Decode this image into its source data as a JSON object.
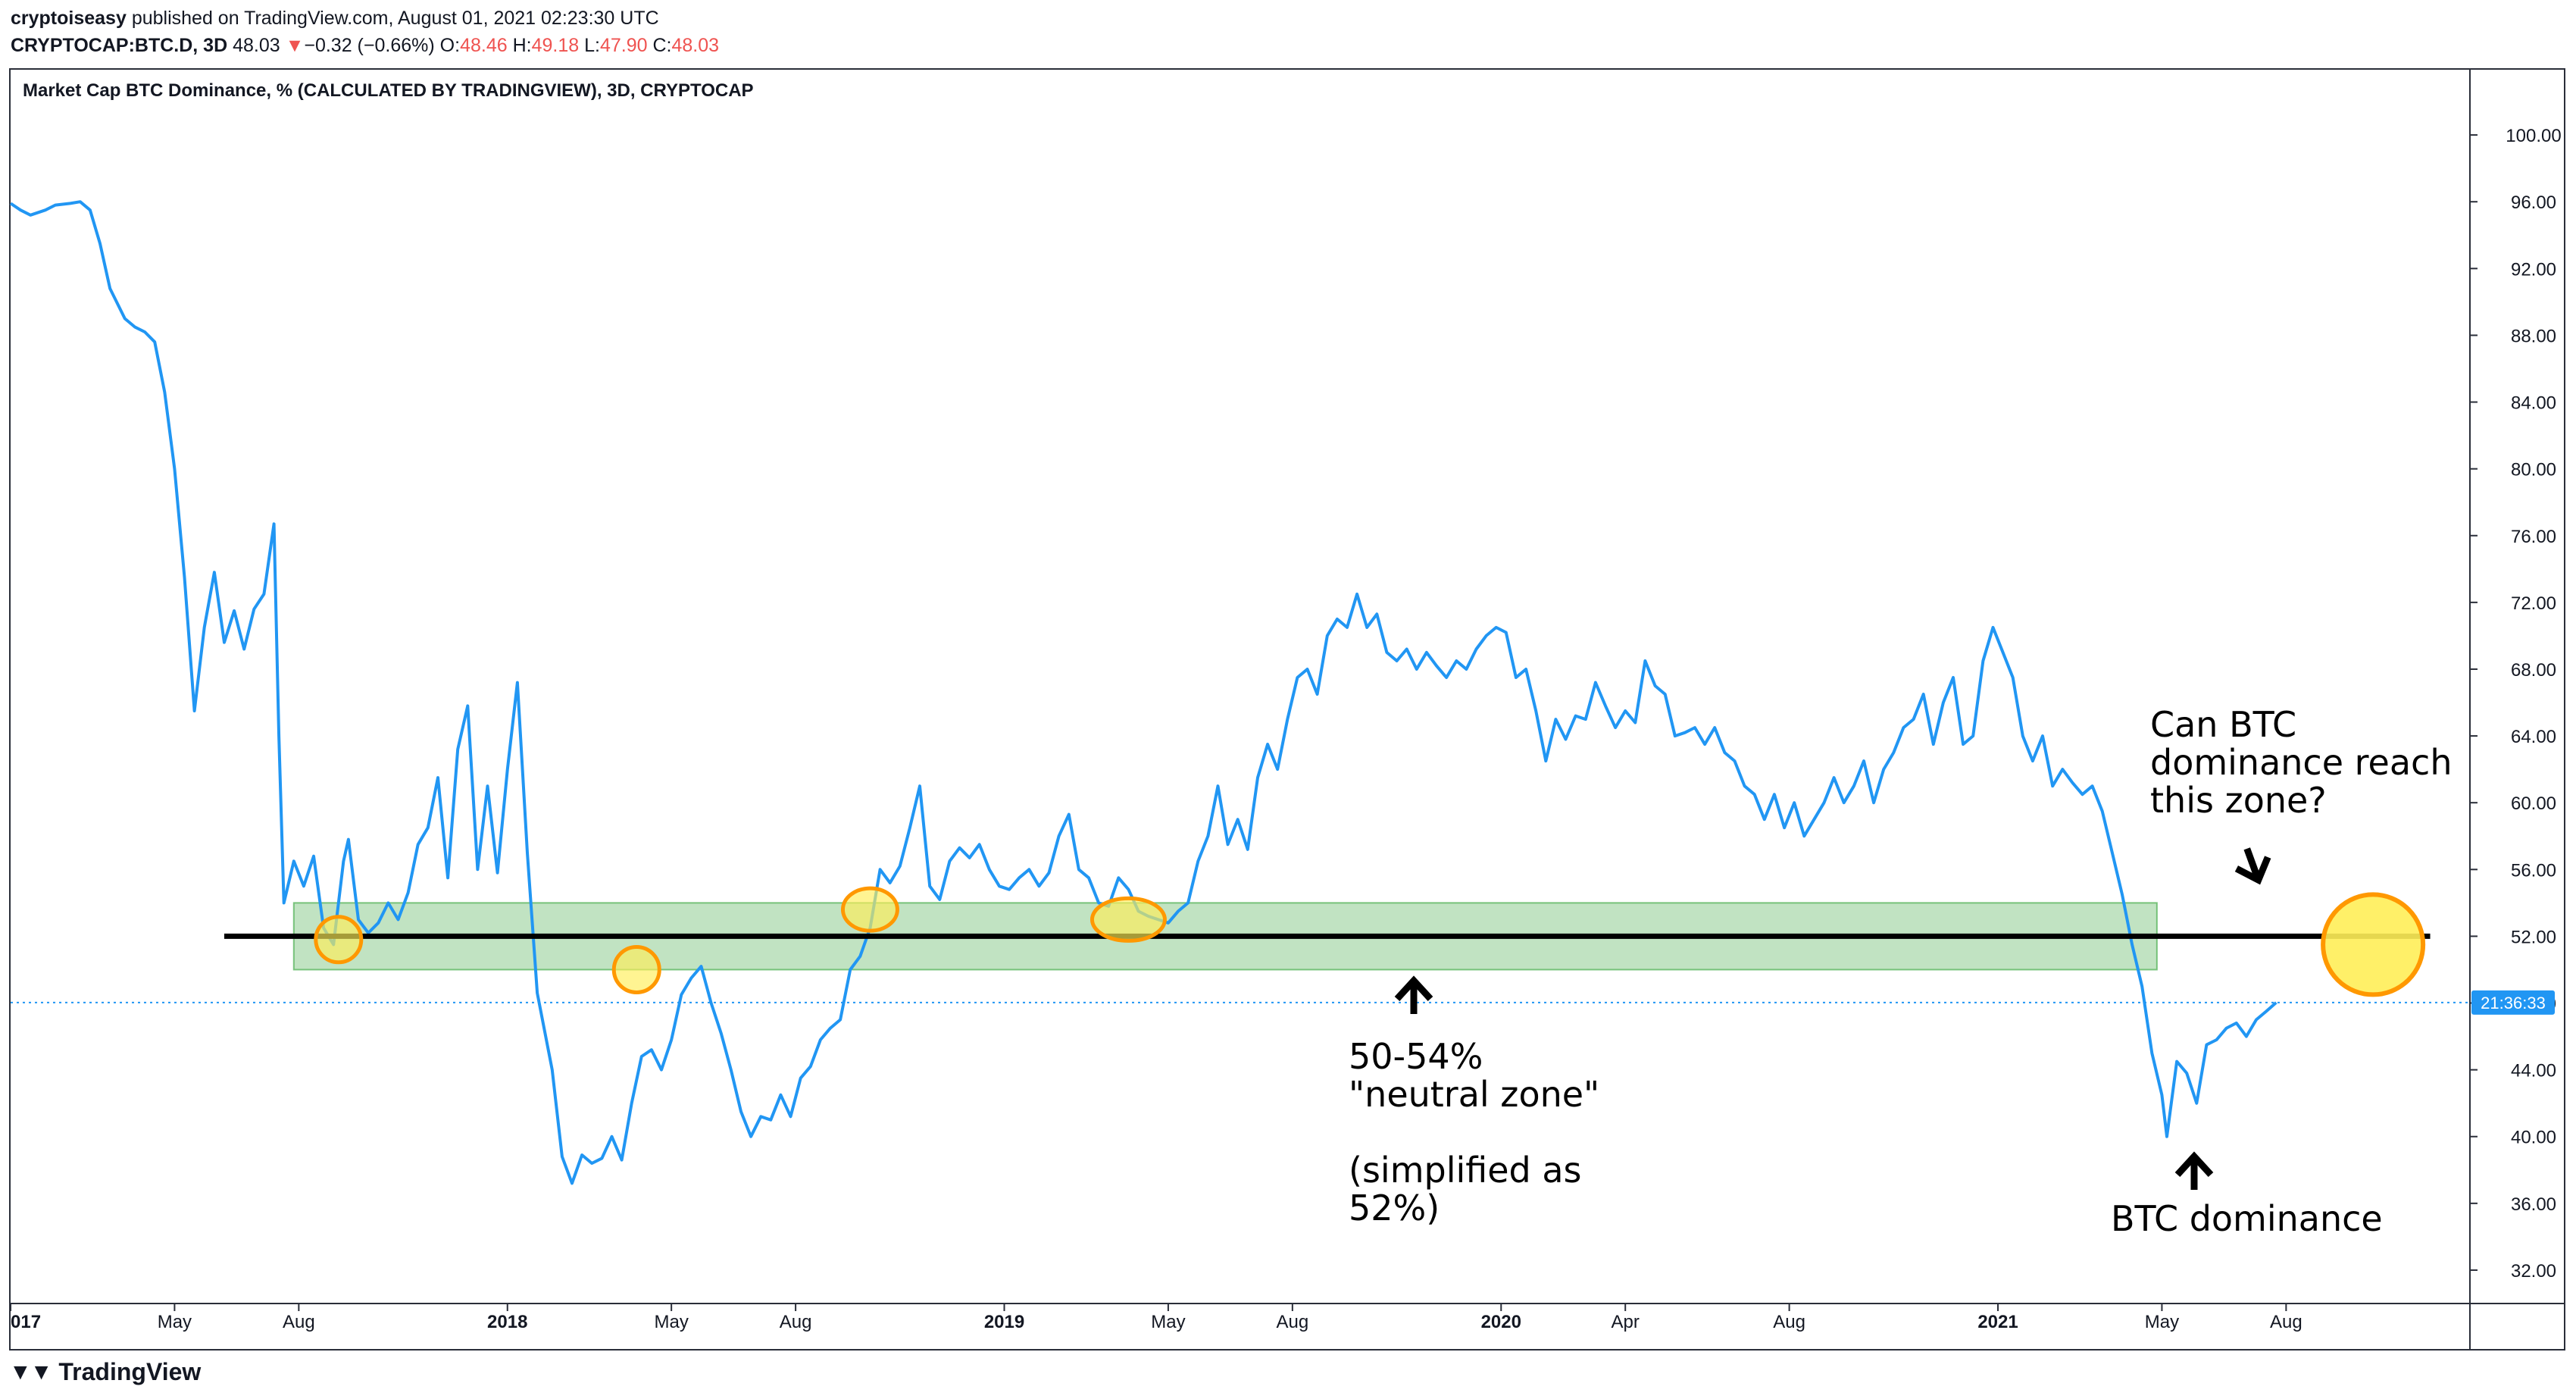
{
  "header": {
    "publisher": "cryptoiseasy",
    "published_text": "published on TradingView.com, August 01, 2021 02:23:30 UTC",
    "symbol": "CRYPTOCAP:BTC.D, 3D",
    "last": "48.03",
    "change": "−0.32 (−0.66%)",
    "open_label": "O:",
    "open": "48.46",
    "high_label": "H:",
    "high": "49.18",
    "low_label": "L:",
    "low": "47.90",
    "close_label": "C:",
    "close": "48.03"
  },
  "chart_title": "Market Cap BTC Dominance, % (CALCULATED BY TRADINGVIEW), 3D, CRYPTOCAP",
  "price_tag": "21:36:33",
  "brand": "TradingView",
  "annotations": {
    "question_lines": [
      "Can BTC",
      "dominance reach",
      "this zone?"
    ],
    "zone_lines": [
      "50-54%",
      "\"neutral zone\"",
      "",
      "(simplified as",
      "52%)"
    ],
    "btc_label": "BTC dominance"
  },
  "colors": {
    "line": "#2196f3",
    "zone": "#4caf50",
    "circle_fill": "#ffee58",
    "circle_stroke": "#ff9800",
    "axis": "#2a2e39"
  },
  "chart_data": {
    "type": "line",
    "title": "Market Cap BTC Dominance, % (CALCULATED BY TRADINGVIEW), 3D, CRYPTOCAP",
    "ylim": [
      30,
      104
    ],
    "y_ticks": [
      "100.00",
      "96.00",
      "92.00",
      "88.00",
      "84.00",
      "80.00",
      "76.00",
      "72.00",
      "68.00",
      "64.00",
      "60.00",
      "56.00",
      "52.00",
      "48.00",
      "44.00",
      "40.00",
      "36.00",
      "32.00"
    ],
    "x_ticks": [
      {
        "label": "017",
        "t": 2017.0
      },
      {
        "label": "May",
        "t": 2017.33
      },
      {
        "label": "Aug",
        "t": 2017.58
      },
      {
        "label": "2018",
        "t": 2018.0
      },
      {
        "label": "May",
        "t": 2018.33
      },
      {
        "label": "Aug",
        "t": 2018.58
      },
      {
        "label": "2019",
        "t": 2019.0
      },
      {
        "label": "May",
        "t": 2019.33
      },
      {
        "label": "Aug",
        "t": 2019.58
      },
      {
        "label": "2020",
        "t": 2020.0
      },
      {
        "label": "Apr",
        "t": 2020.25
      },
      {
        "label": "Aug",
        "t": 2020.58
      },
      {
        "label": "2021",
        "t": 2021.0
      },
      {
        "label": "May",
        "t": 2021.33
      },
      {
        "label": "Aug",
        "t": 2021.58
      }
    ],
    "neutral_zone": [
      50,
      54
    ],
    "level": 52,
    "last_value": 48.03,
    "series": [
      {
        "points": [
          [
            2017.0,
            95.9
          ],
          [
            2017.02,
            95.5
          ],
          [
            2017.04,
            95.2
          ],
          [
            2017.07,
            95.5
          ],
          [
            2017.09,
            95.8
          ],
          [
            2017.12,
            95.9
          ],
          [
            2017.14,
            96.0
          ],
          [
            2017.16,
            95.5
          ],
          [
            2017.18,
            93.5
          ],
          [
            2017.2,
            90.8
          ],
          [
            2017.23,
            89.0
          ],
          [
            2017.25,
            88.5
          ],
          [
            2017.27,
            88.2
          ],
          [
            2017.29,
            87.6
          ],
          [
            2017.31,
            84.6
          ],
          [
            2017.33,
            80.0
          ],
          [
            2017.35,
            73.5
          ],
          [
            2017.37,
            65.5
          ],
          [
            2017.39,
            70.5
          ],
          [
            2017.41,
            73.8
          ],
          [
            2017.43,
            69.6
          ],
          [
            2017.45,
            71.5
          ],
          [
            2017.47,
            69.2
          ],
          [
            2017.49,
            71.6
          ],
          [
            2017.51,
            72.5
          ],
          [
            2017.53,
            76.7
          ],
          [
            2017.54,
            64.0
          ],
          [
            2017.55,
            54.0
          ],
          [
            2017.57,
            56.5
          ],
          [
            2017.59,
            55.0
          ],
          [
            2017.61,
            56.8
          ],
          [
            2017.63,
            52.5
          ],
          [
            2017.65,
            51.5
          ],
          [
            2017.67,
            56.5
          ],
          [
            2017.68,
            57.8
          ],
          [
            2017.7,
            53.0
          ],
          [
            2017.72,
            52.2
          ],
          [
            2017.74,
            52.8
          ],
          [
            2017.76,
            54.0
          ],
          [
            2017.78,
            53.0
          ],
          [
            2017.8,
            54.6
          ],
          [
            2017.82,
            57.5
          ],
          [
            2017.84,
            58.5
          ],
          [
            2017.86,
            61.5
          ],
          [
            2017.88,
            55.5
          ],
          [
            2017.9,
            63.2
          ],
          [
            2017.92,
            65.8
          ],
          [
            2017.94,
            56.0
          ],
          [
            2017.96,
            61.0
          ],
          [
            2017.98,
            55.8
          ],
          [
            2018.0,
            62.0
          ],
          [
            2018.02,
            67.2
          ],
          [
            2018.04,
            57.0
          ],
          [
            2018.06,
            48.6
          ],
          [
            2018.09,
            44.0
          ],
          [
            2018.11,
            38.8
          ],
          [
            2018.13,
            37.2
          ],
          [
            2018.15,
            38.9
          ],
          [
            2018.17,
            38.4
          ],
          [
            2018.19,
            38.7
          ],
          [
            2018.21,
            40.0
          ],
          [
            2018.23,
            38.6
          ],
          [
            2018.25,
            42.0
          ],
          [
            2018.27,
            44.8
          ],
          [
            2018.29,
            45.2
          ],
          [
            2018.31,
            44.0
          ],
          [
            2018.33,
            45.8
          ],
          [
            2018.35,
            48.5
          ],
          [
            2018.37,
            49.5
          ],
          [
            2018.39,
            50.2
          ],
          [
            2018.41,
            48.0
          ],
          [
            2018.43,
            46.2
          ],
          [
            2018.45,
            44.0
          ],
          [
            2018.47,
            41.5
          ],
          [
            2018.49,
            40.0
          ],
          [
            2018.51,
            41.2
          ],
          [
            2018.53,
            41.0
          ],
          [
            2018.55,
            42.5
          ],
          [
            2018.57,
            41.2
          ],
          [
            2018.59,
            43.5
          ],
          [
            2018.61,
            44.2
          ],
          [
            2018.63,
            45.8
          ],
          [
            2018.65,
            46.5
          ],
          [
            2018.67,
            47.0
          ],
          [
            2018.69,
            50.0
          ],
          [
            2018.71,
            50.8
          ],
          [
            2018.73,
            52.5
          ],
          [
            2018.75,
            56.0
          ],
          [
            2018.77,
            55.2
          ],
          [
            2018.79,
            56.2
          ],
          [
            2018.81,
            58.5
          ],
          [
            2018.83,
            61.0
          ],
          [
            2018.85,
            55.0
          ],
          [
            2018.87,
            54.2
          ],
          [
            2018.89,
            56.5
          ],
          [
            2018.91,
            57.3
          ],
          [
            2018.93,
            56.7
          ],
          [
            2018.95,
            57.5
          ],
          [
            2018.97,
            56.0
          ],
          [
            2018.99,
            55.0
          ],
          [
            2019.01,
            54.8
          ],
          [
            2019.03,
            55.5
          ],
          [
            2019.05,
            56.0
          ],
          [
            2019.07,
            55.0
          ],
          [
            2019.09,
            55.8
          ],
          [
            2019.11,
            58.0
          ],
          [
            2019.13,
            59.3
          ],
          [
            2019.15,
            56.0
          ],
          [
            2019.17,
            55.5
          ],
          [
            2019.19,
            54.0
          ],
          [
            2019.21,
            53.8
          ],
          [
            2019.23,
            55.5
          ],
          [
            2019.25,
            54.8
          ],
          [
            2019.27,
            53.5
          ],
          [
            2019.29,
            53.2
          ],
          [
            2019.31,
            53.0
          ],
          [
            2019.33,
            52.8
          ],
          [
            2019.35,
            53.5
          ],
          [
            2019.37,
            54.0
          ],
          [
            2019.39,
            56.5
          ],
          [
            2019.41,
            58.0
          ],
          [
            2019.43,
            61.0
          ],
          [
            2019.45,
            57.5
          ],
          [
            2019.47,
            59.0
          ],
          [
            2019.49,
            57.2
          ],
          [
            2019.51,
            61.5
          ],
          [
            2019.53,
            63.5
          ],
          [
            2019.55,
            62.0
          ],
          [
            2019.57,
            65.0
          ],
          [
            2019.59,
            67.5
          ],
          [
            2019.61,
            68.0
          ],
          [
            2019.63,
            66.5
          ],
          [
            2019.65,
            70.0
          ],
          [
            2019.67,
            71.0
          ],
          [
            2019.69,
            70.5
          ],
          [
            2019.71,
            72.5
          ],
          [
            2019.73,
            70.5
          ],
          [
            2019.75,
            71.3
          ],
          [
            2019.77,
            69.0
          ],
          [
            2019.79,
            68.5
          ],
          [
            2019.81,
            69.2
          ],
          [
            2019.83,
            68.0
          ],
          [
            2019.85,
            69.0
          ],
          [
            2019.87,
            68.2
          ],
          [
            2019.89,
            67.5
          ],
          [
            2019.91,
            68.5
          ],
          [
            2019.93,
            68.0
          ],
          [
            2019.95,
            69.2
          ],
          [
            2019.97,
            70.0
          ],
          [
            2019.99,
            70.5
          ],
          [
            2020.01,
            70.2
          ],
          [
            2020.03,
            67.5
          ],
          [
            2020.05,
            68.0
          ],
          [
            2020.07,
            65.5
          ],
          [
            2020.09,
            62.5
          ],
          [
            2020.11,
            65.0
          ],
          [
            2020.13,
            63.8
          ],
          [
            2020.15,
            65.2
          ],
          [
            2020.17,
            65.0
          ],
          [
            2020.19,
            67.2
          ],
          [
            2020.21,
            65.8
          ],
          [
            2020.23,
            64.5
          ],
          [
            2020.25,
            65.5
          ],
          [
            2020.27,
            64.8
          ],
          [
            2020.29,
            68.5
          ],
          [
            2020.31,
            67.0
          ],
          [
            2020.33,
            66.5
          ],
          [
            2020.35,
            64.0
          ],
          [
            2020.37,
            64.2
          ],
          [
            2020.39,
            64.5
          ],
          [
            2020.41,
            63.5
          ],
          [
            2020.43,
            64.5
          ],
          [
            2020.45,
            63.0
          ],
          [
            2020.47,
            62.5
          ],
          [
            2020.49,
            61.0
          ],
          [
            2020.51,
            60.5
          ],
          [
            2020.53,
            59.0
          ],
          [
            2020.55,
            60.5
          ],
          [
            2020.57,
            58.5
          ],
          [
            2020.59,
            60.0
          ],
          [
            2020.61,
            58.0
          ],
          [
            2020.63,
            59.0
          ],
          [
            2020.65,
            60.0
          ],
          [
            2020.67,
            61.5
          ],
          [
            2020.69,
            60.0
          ],
          [
            2020.71,
            61.0
          ],
          [
            2020.73,
            62.5
          ],
          [
            2020.75,
            60.0
          ],
          [
            2020.77,
            62.0
          ],
          [
            2020.79,
            63.0
          ],
          [
            2020.81,
            64.5
          ],
          [
            2020.83,
            65.0
          ],
          [
            2020.85,
            66.5
          ],
          [
            2020.87,
            63.5
          ],
          [
            2020.89,
            66.0
          ],
          [
            2020.91,
            67.5
          ],
          [
            2020.93,
            63.5
          ],
          [
            2020.95,
            64.0
          ],
          [
            2020.97,
            68.5
          ],
          [
            2020.99,
            70.5
          ],
          [
            2021.01,
            69.0
          ],
          [
            2021.03,
            67.5
          ],
          [
            2021.05,
            64.0
          ],
          [
            2021.07,
            62.5
          ],
          [
            2021.09,
            64.0
          ],
          [
            2021.11,
            61.0
          ],
          [
            2021.13,
            62.0
          ],
          [
            2021.15,
            61.2
          ],
          [
            2021.17,
            60.5
          ],
          [
            2021.19,
            61.0
          ],
          [
            2021.21,
            59.5
          ],
          [
            2021.23,
            57.0
          ],
          [
            2021.25,
            54.5
          ],
          [
            2021.27,
            51.5
          ],
          [
            2021.29,
            49.0
          ],
          [
            2021.31,
            45.0
          ],
          [
            2021.33,
            42.5
          ],
          [
            2021.34,
            40.0
          ],
          [
            2021.36,
            44.5
          ],
          [
            2021.38,
            43.8
          ],
          [
            2021.4,
            42.0
          ],
          [
            2021.42,
            45.5
          ],
          [
            2021.44,
            45.8
          ],
          [
            2021.46,
            46.5
          ],
          [
            2021.48,
            46.8
          ],
          [
            2021.5,
            46.0
          ],
          [
            2021.52,
            47.0
          ],
          [
            2021.54,
            47.5
          ],
          [
            2021.56,
            48.03
          ]
        ]
      }
    ]
  }
}
